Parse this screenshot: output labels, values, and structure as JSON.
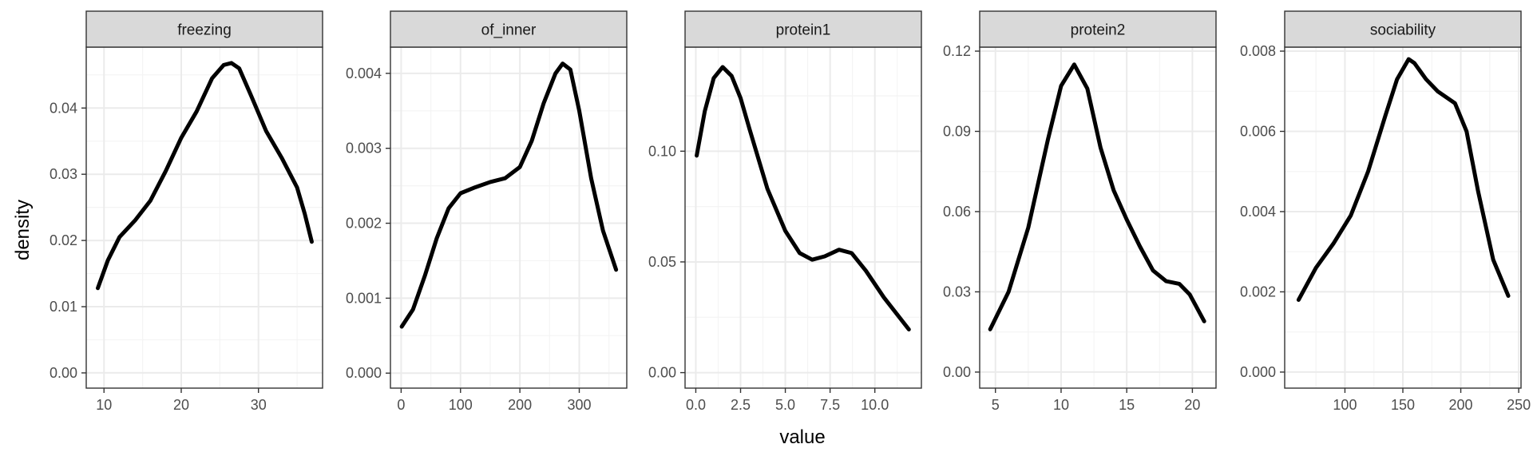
{
  "chart_data": {
    "type": "line",
    "xlabel": "value",
    "ylabel": "density",
    "grid": true,
    "legend": "none",
    "colors": {
      "line": "#000000",
      "strip": "#d9d9d9",
      "grid_major": "#ebebeb",
      "grid_minor": "#f4f4f4",
      "border": "#333333"
    },
    "panels": [
      {
        "title": "freezing",
        "xlim": [
          7.7,
          38.3
        ],
        "ylim": [
          -0.0023,
          0.0492
        ],
        "xticks": [
          10,
          20,
          30
        ],
        "xtick_labels": [
          "10",
          "20",
          "30"
        ],
        "yticks": [
          0,
          0.01,
          0.02,
          0.03,
          0.04
        ],
        "ytick_labels": [
          "0.00",
          "0.01",
          "0.02",
          "0.03",
          "0.04"
        ],
        "x": [
          9.2,
          10.5,
          12,
          14,
          16,
          18,
          20,
          22,
          24,
          25.5,
          26.5,
          27.5,
          29,
          31,
          33,
          35,
          36,
          36.9
        ],
        "y": [
          0.0128,
          0.017,
          0.0205,
          0.023,
          0.026,
          0.0305,
          0.0355,
          0.0395,
          0.0445,
          0.0465,
          0.0468,
          0.046,
          0.042,
          0.0365,
          0.0325,
          0.028,
          0.024,
          0.0198
        ]
      },
      {
        "title": "of_inner",
        "xlim": [
          -18,
          380
        ],
        "ylim": [
          -0.0002,
          0.00435
        ],
        "xticks": [
          0,
          100,
          200,
          300
        ],
        "xtick_labels": [
          "0",
          "100",
          "200",
          "300"
        ],
        "yticks": [
          0,
          0.001,
          0.002,
          0.003,
          0.004
        ],
        "ytick_labels": [
          "0.000",
          "0.001",
          "0.002",
          "0.003",
          "0.004"
        ],
        "x": [
          1,
          20,
          40,
          60,
          80,
          100,
          125,
          150,
          175,
          200,
          220,
          240,
          260,
          272,
          285,
          300,
          320,
          340,
          362
        ],
        "y": [
          0.00062,
          0.00085,
          0.0013,
          0.0018,
          0.0022,
          0.0024,
          0.00248,
          0.00255,
          0.0026,
          0.00275,
          0.0031,
          0.0036,
          0.004,
          0.00413,
          0.00405,
          0.0035,
          0.0026,
          0.0019,
          0.00138
        ]
      },
      {
        "title": "protein1",
        "xlim": [
          -0.6,
          12.6
        ],
        "ylim": [
          -0.007,
          0.147
        ],
        "xticks": [
          0,
          2.5,
          5,
          7.5,
          10
        ],
        "xtick_labels": [
          "0.0",
          "2.5",
          "5.0",
          "7.5",
          "10.0"
        ],
        "yticks": [
          0,
          0.05,
          0.1
        ],
        "ytick_labels": [
          "0.00",
          "0.05",
          "0.10"
        ],
        "x": [
          0.05,
          0.5,
          1,
          1.5,
          2,
          2.5,
          3,
          4,
          5,
          5.8,
          6.5,
          7.2,
          8,
          8.7,
          9.5,
          10.5,
          11.9
        ],
        "y": [
          0.098,
          0.118,
          0.133,
          0.138,
          0.134,
          0.124,
          0.11,
          0.083,
          0.064,
          0.054,
          0.051,
          0.0525,
          0.0555,
          0.054,
          0.046,
          0.034,
          0.0195
        ]
      },
      {
        "title": "protein2",
        "xlim": [
          3.8,
          21.8
        ],
        "ylim": [
          -0.006,
          0.1215
        ],
        "xticks": [
          5,
          10,
          15,
          20
        ],
        "xtick_labels": [
          "5",
          "10",
          "15",
          "20"
        ],
        "yticks": [
          0,
          0.03,
          0.06,
          0.09,
          0.12
        ],
        "ytick_labels": [
          "0.00",
          "0.03",
          "0.06",
          "0.09",
          "0.12"
        ],
        "x": [
          4.6,
          6,
          7.5,
          9,
          10,
          11,
          12,
          13,
          14,
          15,
          16,
          17,
          18,
          19,
          19.8,
          20.9
        ],
        "y": [
          0.016,
          0.03,
          0.054,
          0.087,
          0.107,
          0.115,
          0.106,
          0.084,
          0.068,
          0.057,
          0.047,
          0.038,
          0.034,
          0.033,
          0.029,
          0.019
        ]
      },
      {
        "title": "sociability",
        "xlim": [
          48,
          252
        ],
        "ylim": [
          -0.0004,
          0.0081
        ],
        "xticks": [
          100,
          150,
          200,
          250
        ],
        "xtick_labels": [
          "100",
          "150",
          "200",
          "250"
        ],
        "yticks": [
          0,
          0.002,
          0.004,
          0.006,
          0.008
        ],
        "ytick_labels": [
          "0.000",
          "0.002",
          "0.004",
          "0.006",
          "0.008"
        ],
        "x": [
          60,
          75,
          90,
          105,
          120,
          135,
          145,
          155,
          160,
          170,
          180,
          195,
          205,
          215,
          228,
          241
        ],
        "y": [
          0.0018,
          0.0026,
          0.0032,
          0.0039,
          0.005,
          0.0064,
          0.0073,
          0.0078,
          0.0077,
          0.0073,
          0.007,
          0.0067,
          0.006,
          0.0045,
          0.0028,
          0.0019
        ]
      }
    ]
  }
}
